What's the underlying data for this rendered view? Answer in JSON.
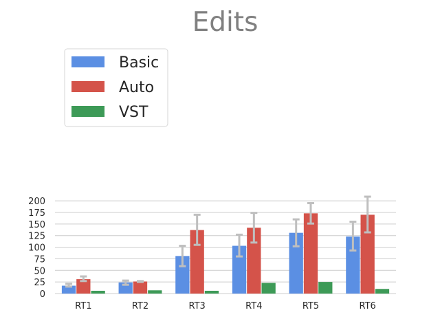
{
  "chart_data": {
    "type": "bar",
    "title": "Edits",
    "xlabel": "",
    "ylabel": "",
    "categories": [
      "RT1",
      "RT2",
      "RT3",
      "RT4",
      "RT5",
      "RT6"
    ],
    "ylim": [
      0,
      215
    ],
    "yticks": [
      0,
      25,
      50,
      75,
      100,
      125,
      150,
      175,
      200
    ],
    "grid": "horizontal",
    "legend_position": "top-left",
    "series": [
      {
        "name": "Basic",
        "color": "#5b8fe3",
        "values": [
          17,
          24,
          81,
          103,
          131,
          123
        ],
        "error": [
          [
            15,
            21
          ],
          [
            19,
            28
          ],
          [
            59,
            103
          ],
          [
            80,
            127
          ],
          [
            102,
            160
          ],
          [
            93,
            155
          ]
        ]
      },
      {
        "name": "Auto",
        "color": "#d4534a",
        "values": [
          31,
          26,
          137,
          142,
          173,
          170
        ],
        "error": [
          [
            27,
            37
          ],
          [
            25,
            27
          ],
          [
            105,
            170
          ],
          [
            110,
            174
          ],
          [
            151,
            195
          ],
          [
            132,
            209
          ]
        ]
      },
      {
        "name": "VST",
        "color": "#3d9a57",
        "values": [
          6,
          7,
          6,
          23,
          25,
          10
        ],
        "error": null
      }
    ]
  }
}
